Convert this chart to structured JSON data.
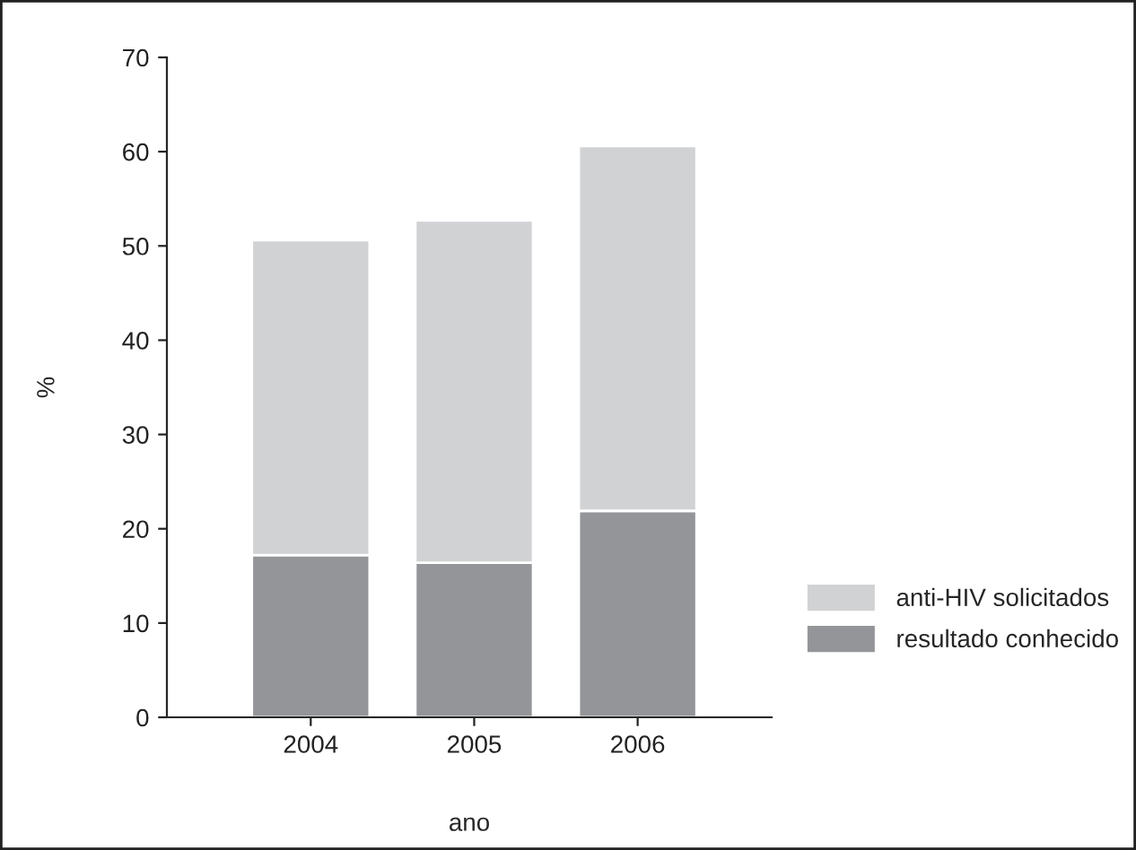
{
  "chart_data": {
    "type": "bar",
    "stacked": true,
    "xlabel": "ano",
    "ylabel": "%",
    "categories": [
      "2004",
      "2005",
      "2006"
    ],
    "series": [
      {
        "name": "resultado conhecido",
        "color": "#939598",
        "values": [
          17.2,
          16.4,
          21.9
        ]
      },
      {
        "name": "anti-HIV solicitados",
        "color": "#d1d2d4",
        "values": [
          33.4,
          36.3,
          38.7
        ]
      }
    ],
    "ylim": [
      0,
      70
    ],
    "yticks": [
      0,
      10,
      20,
      30,
      40,
      50,
      60,
      70
    ],
    "grid": false,
    "legend": "right"
  }
}
